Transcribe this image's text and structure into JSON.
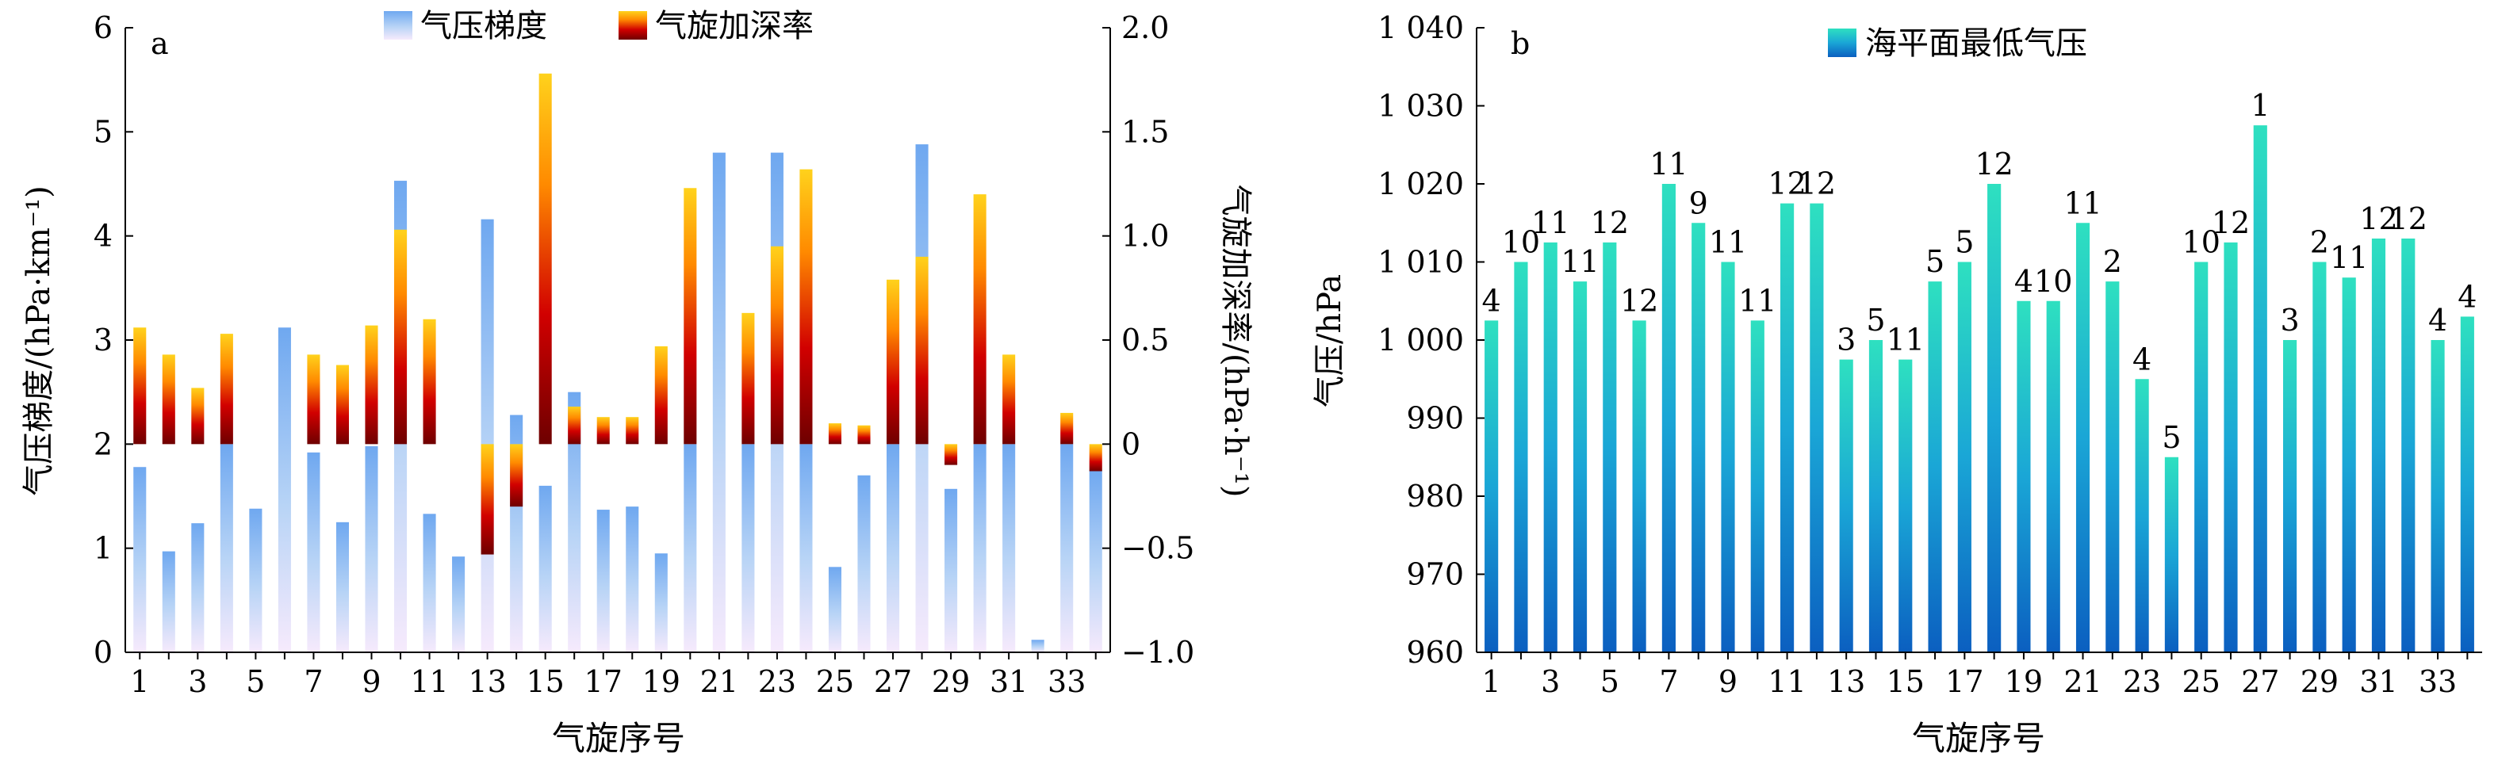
{
  "chart_data": [
    {
      "type": "bar",
      "panel_label": "a",
      "xlabel": "气旋序号",
      "ylabel_left": "气压梯度/(hPa·km⁻¹)",
      "ylabel_right": "气旋加深率/(hPa·h⁻¹)",
      "ylim_left": [
        0,
        6
      ],
      "ylim_right": [
        -1.0,
        2.0
      ],
      "yticks_left": [
        "0",
        "1",
        "2",
        "3",
        "4",
        "5",
        "6"
      ],
      "yticks_right": [
        "−1.0",
        "−0.5",
        "0",
        "0.5",
        "1.0",
        "1.5",
        "2.0"
      ],
      "xtick_labels": [
        "1",
        "3",
        "5",
        "7",
        "9",
        "11",
        "13",
        "15",
        "17",
        "19",
        "21",
        "23",
        "25",
        "27",
        "29",
        "31",
        "33"
      ],
      "legend_position": "top-center",
      "categories": [
        "1",
        "2",
        "3",
        "4",
        "5",
        "6",
        "7",
        "8",
        "9",
        "10",
        "11",
        "12",
        "13",
        "14",
        "15",
        "16",
        "17",
        "18",
        "19",
        "20",
        "21",
        "22",
        "23",
        "24",
        "25",
        "26",
        "27",
        "28",
        "29",
        "30",
        "31",
        "32",
        "33",
        "34"
      ],
      "series": [
        {
          "name": "气压梯度",
          "axis": "left",
          "color_top": "#6fa8f0",
          "color_bottom": "#f6eafc",
          "values": [
            1.78,
            0.97,
            1.24,
            2.0,
            1.38,
            3.12,
            1.92,
            1.25,
            1.98,
            4.53,
            1.33,
            0.92,
            4.16,
            2.28,
            1.6,
            2.5,
            1.37,
            1.4,
            0.95,
            2.0,
            4.8,
            2.0,
            4.8,
            2.0,
            0.82,
            1.7,
            2.0,
            4.88,
            1.57,
            2.0,
            2.0,
            0.12,
            2.0,
            1.75
          ]
        },
        {
          "name": "气旋加深率",
          "axis": "right",
          "color_top": "#ffd21c",
          "color_bottom": "#6e0000",
          "values": [
            0.56,
            0.43,
            0.27,
            0.53,
            null,
            null,
            0.43,
            0.38,
            0.57,
            1.03,
            0.6,
            null,
            -0.53,
            -0.3,
            1.78,
            0.18,
            0.13,
            0.13,
            0.47,
            1.23,
            null,
            0.63,
            0.95,
            1.32,
            0.1,
            0.09,
            0.79,
            0.9,
            -0.1,
            1.2,
            0.43,
            null,
            0.15,
            -0.13
          ]
        }
      ]
    },
    {
      "type": "bar",
      "panel_label": "b",
      "xlabel": "气旋序号",
      "ylabel": "气压/hPa",
      "ylim": [
        960,
        1040
      ],
      "yticks": [
        "960",
        "970",
        "980",
        "990",
        "1 000",
        "1 010",
        "1 020",
        "1 030",
        "1 040"
      ],
      "xtick_labels": [
        "1",
        "3",
        "5",
        "7",
        "9",
        "11",
        "13",
        "15",
        "17",
        "19",
        "21",
        "23",
        "25",
        "27",
        "29",
        "31",
        "33"
      ],
      "legend_position": "top-center",
      "categories": [
        "1",
        "2",
        "3",
        "4",
        "5",
        "6",
        "7",
        "8",
        "9",
        "10",
        "11",
        "12",
        "13",
        "14",
        "15",
        "16",
        "17",
        "18",
        "19",
        "20",
        "21",
        "22",
        "23",
        "24",
        "25",
        "26",
        "27",
        "28",
        "29",
        "30",
        "31",
        "32",
        "33",
        "34"
      ],
      "series": [
        {
          "name": "海平面最低气压",
          "color_top": "#2ee0c0",
          "color_bottom": "#0b5fc0",
          "values": [
            1002.5,
            1010,
            1012.5,
            1007.5,
            1012.5,
            1002.5,
            1020,
            1015,
            1010,
            1002.5,
            1017.5,
            1017.5,
            997.5,
            1000,
            997.5,
            1007.5,
            1010,
            1020,
            1005,
            1005,
            1015,
            1007.5,
            995,
            985,
            1010,
            1012.5,
            1027.5,
            1000,
            1010,
            1008,
            1013,
            1013,
            1000,
            1003
          ],
          "data_labels": [
            "4",
            "10",
            "11",
            "11",
            "12",
            "12",
            "11",
            "9",
            "11",
            "11",
            "12",
            "12",
            "3",
            "5",
            "11",
            "5",
            "5",
            "12",
            "4",
            "10",
            "11",
            "2",
            "4",
            "5",
            "10",
            "12",
            "1",
            "3",
            "2",
            "11",
            "12",
            "12",
            "4",
            "4"
          ]
        }
      ]
    }
  ]
}
